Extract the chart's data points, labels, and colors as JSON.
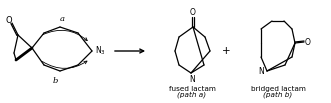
{
  "figsize": [
    3.31,
    1.03
  ],
  "dpi": 100,
  "bg_color": "#ffffff",
  "structure_color": "#000000",
  "label_fused_line1": "fused lactam",
  "label_fused_line2": "(path a)",
  "label_bridged_line1": "bridged lactam",
  "label_bridged_line2": "(path b)",
  "label_a": "a",
  "label_b": "b",
  "label_N3": "N",
  "label_N3_sub": "3",
  "label_O": "O",
  "label_N": "N",
  "label_plus": "+",
  "font_size_main": 5.5,
  "font_size_small": 5.2,
  "font_size_italic": 5.2
}
